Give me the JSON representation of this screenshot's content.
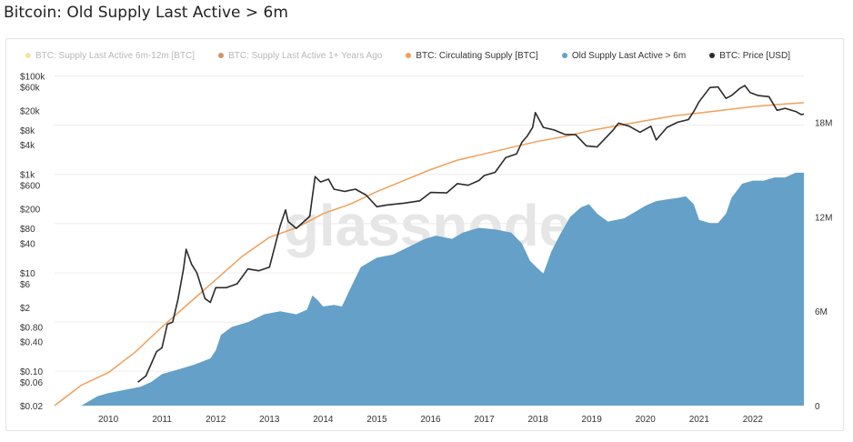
{
  "page": {
    "title": "Bitcoin: Old Supply Last Active > 6m"
  },
  "colors": {
    "supply_6m_12m": "#f4e3a4",
    "supply_1y": "#d2936a",
    "circulating": "#f0a05a",
    "old_supply_area": "#64a0c8",
    "price": "#2b2b2b",
    "gridline": "#ececec",
    "watermark": "#e6e6e6"
  },
  "chart_data": {
    "type": "line",
    "title": "Bitcoin: Old Supply Last Active > 6m",
    "watermark": "glassnode",
    "legend": [
      {
        "name": "BTC: Supply Last Active 6m-12m [BTC]",
        "color": "#f4e3a4",
        "state": "hidden"
      },
      {
        "name": "BTC: Supply Last Active 1+ Years Ago",
        "color": "#d2936a",
        "state": "hidden"
      },
      {
        "name": "BTC: Circulating Supply [BTC]",
        "color": "#f0a05a",
        "state": "visible"
      },
      {
        "name": "Old Supply Last Active > 6m",
        "color": "#64a0c8",
        "state": "visible"
      },
      {
        "name": "BTC: Price [USD]",
        "color": "#2b2b2b",
        "state": "visible"
      }
    ],
    "legend_position": "top-left",
    "grid": true,
    "x_axis": {
      "range": [
        2009.0,
        2022.95
      ],
      "ticks": [
        2010,
        2011,
        2012,
        2013,
        2014,
        2015,
        2016,
        2017,
        2018,
        2019,
        2020,
        2021,
        2022
      ],
      "tick_labels": [
        "2010",
        "2011",
        "2012",
        "2013",
        "2014",
        "2015",
        "2016",
        "2017",
        "2018",
        "2019",
        "2020",
        "2021",
        "2022"
      ]
    },
    "y_left": {
      "scale": "log",
      "range": [
        0.02,
        150000
      ],
      "ticks": [
        100000,
        60000,
        20000,
        8000,
        4000,
        1000,
        600,
        200,
        80,
        40,
        10,
        6,
        2,
        0.8,
        0.4,
        0.1,
        0.06,
        0.02
      ],
      "tick_labels": [
        "$100k",
        "$60k",
        "$20k",
        "$8k",
        "$4k",
        "$1k",
        "$600",
        "$200",
        "$80",
        "$40",
        "$10",
        "$6",
        "$2",
        "$0.80",
        "$0.40",
        "$0.10",
        "$0.06",
        "$0.02"
      ],
      "gridlines": [
        100000,
        10000,
        1000,
        100,
        10,
        1,
        0.1
      ]
    },
    "y_right": {
      "scale": "linear",
      "range": [
        0,
        21500000
      ],
      "ticks": [
        0,
        6000000,
        12000000,
        18000000
      ],
      "tick_labels": [
        "0",
        "6M",
        "12M",
        "18M"
      ]
    },
    "series": [
      {
        "name": "BTC: Circulating Supply [BTC]",
        "axis": "right",
        "points": [
          [
            2009.0,
            0
          ],
          [
            2009.5,
            1300000
          ],
          [
            2010.0,
            2100000
          ],
          [
            2010.5,
            3400000
          ],
          [
            2011.0,
            5000000
          ],
          [
            2011.5,
            6500000
          ],
          [
            2012.0,
            8000000
          ],
          [
            2012.5,
            9500000
          ],
          [
            2013.0,
            10700000
          ],
          [
            2013.5,
            11300000
          ],
          [
            2014.0,
            12200000
          ],
          [
            2014.5,
            12800000
          ],
          [
            2015.0,
            13600000
          ],
          [
            2015.5,
            14300000
          ],
          [
            2016.0,
            15000000
          ],
          [
            2016.5,
            15600000
          ],
          [
            2017.0,
            16000000
          ],
          [
            2017.5,
            16400000
          ],
          [
            2018.0,
            16800000
          ],
          [
            2018.5,
            17100000
          ],
          [
            2019.0,
            17500000
          ],
          [
            2019.5,
            17800000
          ],
          [
            2020.0,
            18100000
          ],
          [
            2020.5,
            18400000
          ],
          [
            2021.0,
            18600000
          ],
          [
            2021.5,
            18800000
          ],
          [
            2022.0,
            19000000
          ],
          [
            2022.5,
            19150000
          ],
          [
            2022.95,
            19250000
          ]
        ]
      },
      {
        "name": "Old Supply Last Active > 6m",
        "axis": "right",
        "points": [
          [
            2009.5,
            0
          ],
          [
            2009.8,
            600000
          ],
          [
            2010.0,
            800000
          ],
          [
            2010.3,
            1000000
          ],
          [
            2010.6,
            1200000
          ],
          [
            2010.8,
            1500000
          ],
          [
            2011.0,
            2000000
          ],
          [
            2011.3,
            2300000
          ],
          [
            2011.6,
            2600000
          ],
          [
            2011.9,
            3000000
          ],
          [
            2012.0,
            3500000
          ],
          [
            2012.1,
            4500000
          ],
          [
            2012.3,
            5000000
          ],
          [
            2012.6,
            5300000
          ],
          [
            2012.9,
            5800000
          ],
          [
            2013.2,
            6000000
          ],
          [
            2013.5,
            5800000
          ],
          [
            2013.7,
            6100000
          ],
          [
            2013.8,
            7000000
          ],
          [
            2013.9,
            6700000
          ],
          [
            2014.0,
            6300000
          ],
          [
            2014.2,
            6400000
          ],
          [
            2014.35,
            6300000
          ],
          [
            2014.5,
            7400000
          ],
          [
            2014.7,
            8800000
          ],
          [
            2014.9,
            9200000
          ],
          [
            2015.0,
            9400000
          ],
          [
            2015.3,
            9600000
          ],
          [
            2015.6,
            10100000
          ],
          [
            2015.9,
            10600000
          ],
          [
            2016.1,
            10800000
          ],
          [
            2016.4,
            10600000
          ],
          [
            2016.6,
            11000000
          ],
          [
            2016.9,
            11300000
          ],
          [
            2017.2,
            11200000
          ],
          [
            2017.5,
            11000000
          ],
          [
            2017.7,
            10300000
          ],
          [
            2017.85,
            9200000
          ],
          [
            2018.0,
            8700000
          ],
          [
            2018.1,
            8400000
          ],
          [
            2018.25,
            9800000
          ],
          [
            2018.4,
            10800000
          ],
          [
            2018.6,
            12000000
          ],
          [
            2018.8,
            12600000
          ],
          [
            2018.95,
            12800000
          ],
          [
            2019.1,
            12200000
          ],
          [
            2019.3,
            11700000
          ],
          [
            2019.6,
            11900000
          ],
          [
            2019.8,
            12300000
          ],
          [
            2020.0,
            12700000
          ],
          [
            2020.2,
            13000000
          ],
          [
            2020.4,
            13100000
          ],
          [
            2020.6,
            13200000
          ],
          [
            2020.75,
            13300000
          ],
          [
            2020.9,
            12800000
          ],
          [
            2021.0,
            11800000
          ],
          [
            2021.2,
            11600000
          ],
          [
            2021.35,
            11600000
          ],
          [
            2021.5,
            12200000
          ],
          [
            2021.6,
            13200000
          ],
          [
            2021.8,
            14100000
          ],
          [
            2022.0,
            14300000
          ],
          [
            2022.2,
            14300000
          ],
          [
            2022.4,
            14500000
          ],
          [
            2022.6,
            14500000
          ],
          [
            2022.8,
            14800000
          ],
          [
            2022.95,
            14800000
          ]
        ]
      },
      {
        "name": "BTC: Price [USD]",
        "axis": "left",
        "points": [
          [
            2010.55,
            0.06
          ],
          [
            2010.7,
            0.08
          ],
          [
            2010.9,
            0.25
          ],
          [
            2011.0,
            0.3
          ],
          [
            2011.1,
            0.9
          ],
          [
            2011.2,
            1.0
          ],
          [
            2011.3,
            3
          ],
          [
            2011.4,
            12
          ],
          [
            2011.45,
            30
          ],
          [
            2011.55,
            15
          ],
          [
            2011.65,
            10
          ],
          [
            2011.8,
            3
          ],
          [
            2011.9,
            2.5
          ],
          [
            2012.0,
            5
          ],
          [
            2012.2,
            5
          ],
          [
            2012.4,
            6
          ],
          [
            2012.6,
            12
          ],
          [
            2012.8,
            11
          ],
          [
            2013.0,
            13
          ],
          [
            2013.2,
            90
          ],
          [
            2013.3,
            190
          ],
          [
            2013.35,
            110
          ],
          [
            2013.5,
            80
          ],
          [
            2013.6,
            100
          ],
          [
            2013.75,
            140
          ],
          [
            2013.85,
            900
          ],
          [
            2013.95,
            700
          ],
          [
            2014.1,
            800
          ],
          [
            2014.2,
            500
          ],
          [
            2014.4,
            450
          ],
          [
            2014.6,
            500
          ],
          [
            2014.8,
            380
          ],
          [
            2015.0,
            220
          ],
          [
            2015.2,
            240
          ],
          [
            2015.5,
            260
          ],
          [
            2015.8,
            290
          ],
          [
            2016.0,
            430
          ],
          [
            2016.3,
            420
          ],
          [
            2016.5,
            650
          ],
          [
            2016.7,
            600
          ],
          [
            2016.9,
            750
          ],
          [
            2017.0,
            950
          ],
          [
            2017.2,
            1100
          ],
          [
            2017.4,
            2200
          ],
          [
            2017.6,
            2600
          ],
          [
            2017.7,
            4500
          ],
          [
            2017.8,
            6000
          ],
          [
            2017.9,
            9000
          ],
          [
            2017.95,
            18000
          ],
          [
            2018.1,
            9000
          ],
          [
            2018.3,
            8000
          ],
          [
            2018.5,
            6500
          ],
          [
            2018.7,
            6400
          ],
          [
            2018.9,
            3800
          ],
          [
            2019.1,
            3600
          ],
          [
            2019.4,
            8000
          ],
          [
            2019.5,
            11000
          ],
          [
            2019.7,
            9500
          ],
          [
            2019.9,
            7200
          ],
          [
            2020.1,
            9500
          ],
          [
            2020.2,
            5000
          ],
          [
            2020.4,
            9000
          ],
          [
            2020.6,
            11500
          ],
          [
            2020.8,
            13000
          ],
          [
            2020.9,
            19000
          ],
          [
            2021.0,
            30000
          ],
          [
            2021.2,
            58000
          ],
          [
            2021.35,
            60000
          ],
          [
            2021.5,
            35000
          ],
          [
            2021.6,
            40000
          ],
          [
            2021.75,
            55000
          ],
          [
            2021.85,
            64000
          ],
          [
            2021.95,
            46000
          ],
          [
            2022.1,
            40000
          ],
          [
            2022.3,
            38000
          ],
          [
            2022.45,
            20000
          ],
          [
            2022.6,
            22000
          ],
          [
            2022.8,
            19000
          ],
          [
            2022.9,
            16500
          ],
          [
            2022.95,
            16800
          ]
        ]
      }
    ]
  }
}
